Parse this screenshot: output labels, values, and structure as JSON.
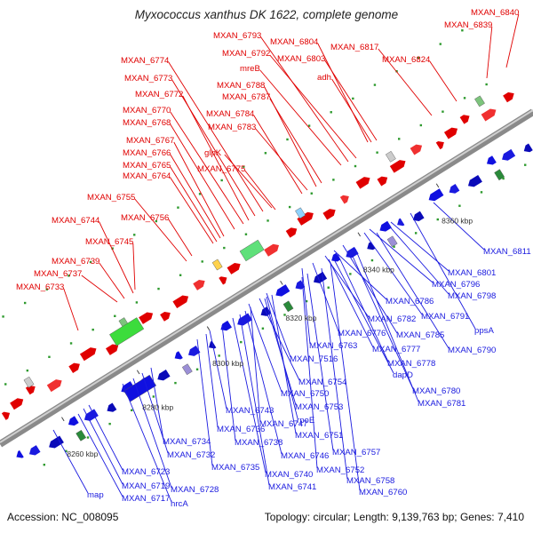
{
  "title": "Myxococcus xanthus DK 1622, complete genome",
  "footer": {
    "accession": "Accession: NC_008095",
    "summary": "Topology: circular; Length: 9,139,763 bp; Genes: 7,410"
  },
  "colors": {
    "forward": "#e00000",
    "reverse": "#1a1adf",
    "backbone": "#9a9a9a",
    "tick": "#2e9a2e"
  },
  "ticks": [
    "8260 kbp",
    "8280 kbp",
    "8300 kbp",
    "8320 kbp",
    "8340 kbp",
    "8360 kbp"
  ],
  "forward_labels": [
    "MXAN_6840",
    "MXAN_6839",
    "MXAN_6793",
    "MXAN_6804",
    "MXAN_6817",
    "MXAN_6792",
    "MXAN_6803",
    "MXAN_6774",
    "MXAN_6824",
    "mreB",
    "adh",
    "MXAN_6773",
    "MXAN_6788",
    "MXAN_6772",
    "MXAN_6787",
    "MXAN_6770",
    "MXAN_6784",
    "MXAN_6768",
    "MXAN_6783",
    "MXAN_6767",
    "glpK",
    "MXAN_6766",
    "MXAN_6765",
    "MXAN_6775",
    "MXAN_6764",
    "MXAN_6755",
    "MXAN_6744",
    "MXAN_6756",
    "MXAN_6745",
    "MXAN_6739",
    "MXAN_6737",
    "MXAN_6733"
  ],
  "reverse_labels": [
    "MXAN_6811",
    "MXAN_6801",
    "MXAN_6796",
    "MXAN_6798",
    "MXAN_6786",
    "MXAN_6791",
    "MXAN_6782",
    "ppsA",
    "MXAN_6776",
    "MXAN_6785",
    "MXAN_6763",
    "MXAN_6790",
    "MXAN_7516",
    "MXAN_6777",
    "MXAN_6778",
    "dapD",
    "MXAN_6754",
    "MXAN_6780",
    "MXAN_6750",
    "MXAN_6781",
    "MXAN_6753",
    "MXAN_6743",
    "rpoE",
    "MXAN_6747",
    "MXAN_6736",
    "MXAN_6751",
    "MXAN_6734",
    "MXAN_6738",
    "MXAN_6757",
    "MXAN_6732",
    "MXAN_6746",
    "MXAN_6735",
    "MXAN_6752",
    "MXAN_6723",
    "MXAN_6740",
    "MXAN_6758",
    "MXAN_6719",
    "MXAN_6728",
    "MXAN_6741",
    "MXAN_6760",
    "MXAN_6717",
    "map",
    "hrcA"
  ]
}
